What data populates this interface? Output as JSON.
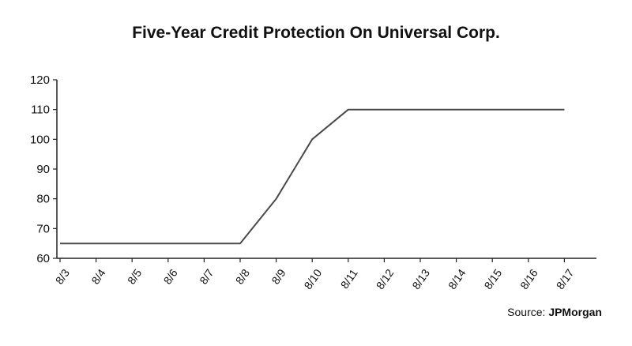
{
  "chart_data": {
    "type": "line",
    "title": "Five-Year Credit Protection On Universal Corp.",
    "xlabel": "",
    "ylabel": "",
    "categories": [
      "8/3",
      "8/4",
      "8/5",
      "8/6",
      "8/7",
      "8/8",
      "8/9",
      "8/10",
      "8/11",
      "8/12",
      "8/13",
      "8/14",
      "8/15",
      "8/16",
      "8/17"
    ],
    "yticks": [
      60,
      70,
      80,
      90,
      100,
      110,
      120
    ],
    "ylim": [
      60,
      120
    ],
    "grid": false,
    "series": [
      {
        "points": [
          {
            "x": "8/3",
            "y": 65
          },
          {
            "x": "8/8",
            "y": 65
          },
          {
            "x": "8/9",
            "y": 80
          },
          {
            "x": "8/10",
            "y": 100
          },
          {
            "x": "8/11",
            "y": 110
          },
          {
            "x": "8/17",
            "y": 110
          }
        ]
      }
    ],
    "line_color": "#4a4a4a"
  },
  "source": {
    "prefix": "Source:",
    "org": "JPMorgan"
  }
}
